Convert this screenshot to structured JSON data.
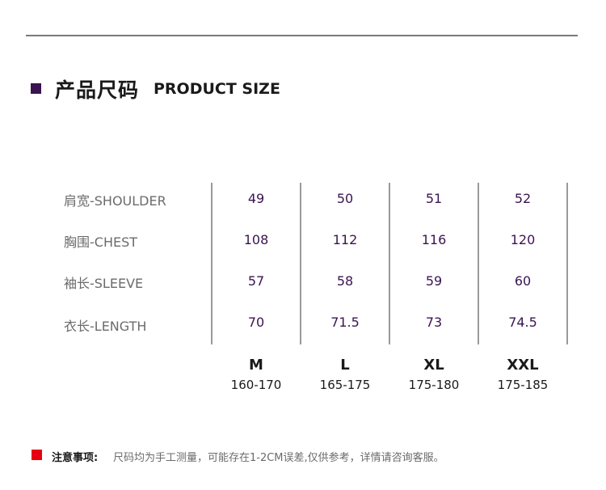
{
  "header": {
    "title_cn": "产品尺码",
    "title_en": "PRODUCT SIZE"
  },
  "table": {
    "rows": [
      {
        "label": "肩宽-SHOULDER",
        "values": [
          "49",
          "50",
          "51",
          "52"
        ]
      },
      {
        "label": "胸围-CHEST",
        "values": [
          "108",
          "112",
          "116",
          "120"
        ]
      },
      {
        "label": "袖长-SLEEVE",
        "values": [
          "57",
          "58",
          "59",
          "60"
        ]
      },
      {
        "label": "衣长-LENGTH",
        "values": [
          "70",
          "71.5",
          "73",
          "74.5"
        ]
      }
    ],
    "sizes": [
      {
        "name": "M",
        "height": "160-170"
      },
      {
        "name": "L",
        "height": "165-175"
      },
      {
        "name": "XL",
        "height": "175-180"
      },
      {
        "name": "XXL",
        "height": "175-185"
      }
    ]
  },
  "note": {
    "label": "注意事项:",
    "text": "尺码均为手工测量，可能存在1-2CM误差,仅供参考，详情请咨询客服。"
  },
  "colors": {
    "accent": "#3a1450",
    "note_marker": "#e60012",
    "label_gray": "#6b6b6b"
  }
}
